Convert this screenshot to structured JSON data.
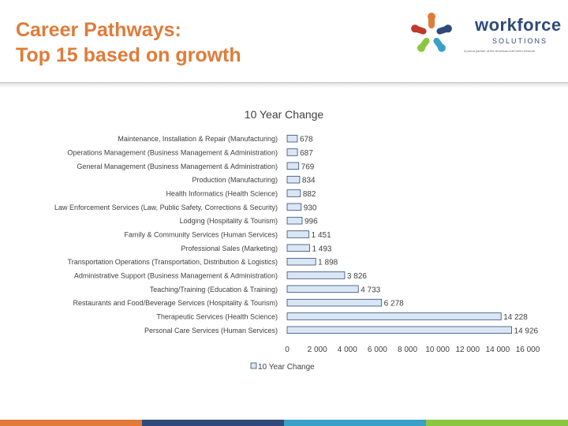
{
  "slide": {
    "title_line1": "Career Pathways:",
    "title_line2": "Top 15 based on growth"
  },
  "logo": {
    "word": "workforce",
    "sub": "SOLUTIONS",
    "tagline": "A proud partner of the AmericanJobCenter network",
    "mark_colors": [
      "#e07b39",
      "#2f4a7a",
      "#3aa0c8",
      "#8cc63f",
      "#c0392b"
    ]
  },
  "footer_colors": [
    "#e07b39",
    "#2f4a7a",
    "#3aa0c8",
    "#8cc63f"
  ],
  "chart_data": {
    "type": "bar",
    "orientation": "horizontal",
    "title": "10 Year Change",
    "categories": [
      "Maintenance, Installation & Repair (Manufacturing)",
      "Operations Management (Business Management & Administration)",
      "General Management (Business Management & Administration)",
      "Production (Manufacturing)",
      "Health Informatics (Health Science)",
      "Law Enforcement Services (Law, Public Safety, Corrections & Security)",
      "Lodging (Hospitality & Tourism)",
      "Family & Community Services (Human Services)",
      "Professional Sales (Marketing)",
      "Transportation Operations (Transportation, Distribution & Logistics)",
      "Administrative Support (Business Management & Administration)",
      "Teaching/Training (Education & Training)",
      "Restaurants and Food/Beverage Services (Hospitality & Tourism)",
      "Therapeutic Services (Health Science)",
      "Personal Care Services (Human Services)"
    ],
    "series": [
      {
        "name": "10 Year Change",
        "color": "#dbe6f4",
        "values": [
          678,
          687,
          769,
          834,
          882,
          930,
          996,
          1451,
          1493,
          1898,
          3826,
          4733,
          6278,
          14228,
          14926
        ],
        "value_labels": [
          "678",
          "687",
          "769",
          "834",
          "882",
          "930",
          "996",
          "1 451",
          "1 493",
          "1 898",
          "3 826",
          "4 733",
          "6 278",
          "14 228",
          "14 926"
        ]
      }
    ],
    "xlim": [
      0,
      16000
    ],
    "x_ticks": [
      0,
      2000,
      4000,
      6000,
      8000,
      10000,
      12000,
      14000,
      16000
    ],
    "x_tick_labels": [
      "0",
      "2 000",
      "4 000",
      "6 000",
      "8 000",
      "10 000",
      "12 000",
      "14 000",
      "16 000"
    ],
    "grid": false,
    "legend_position": "bottom",
    "bar_edge_color": "#2f4a7a"
  }
}
